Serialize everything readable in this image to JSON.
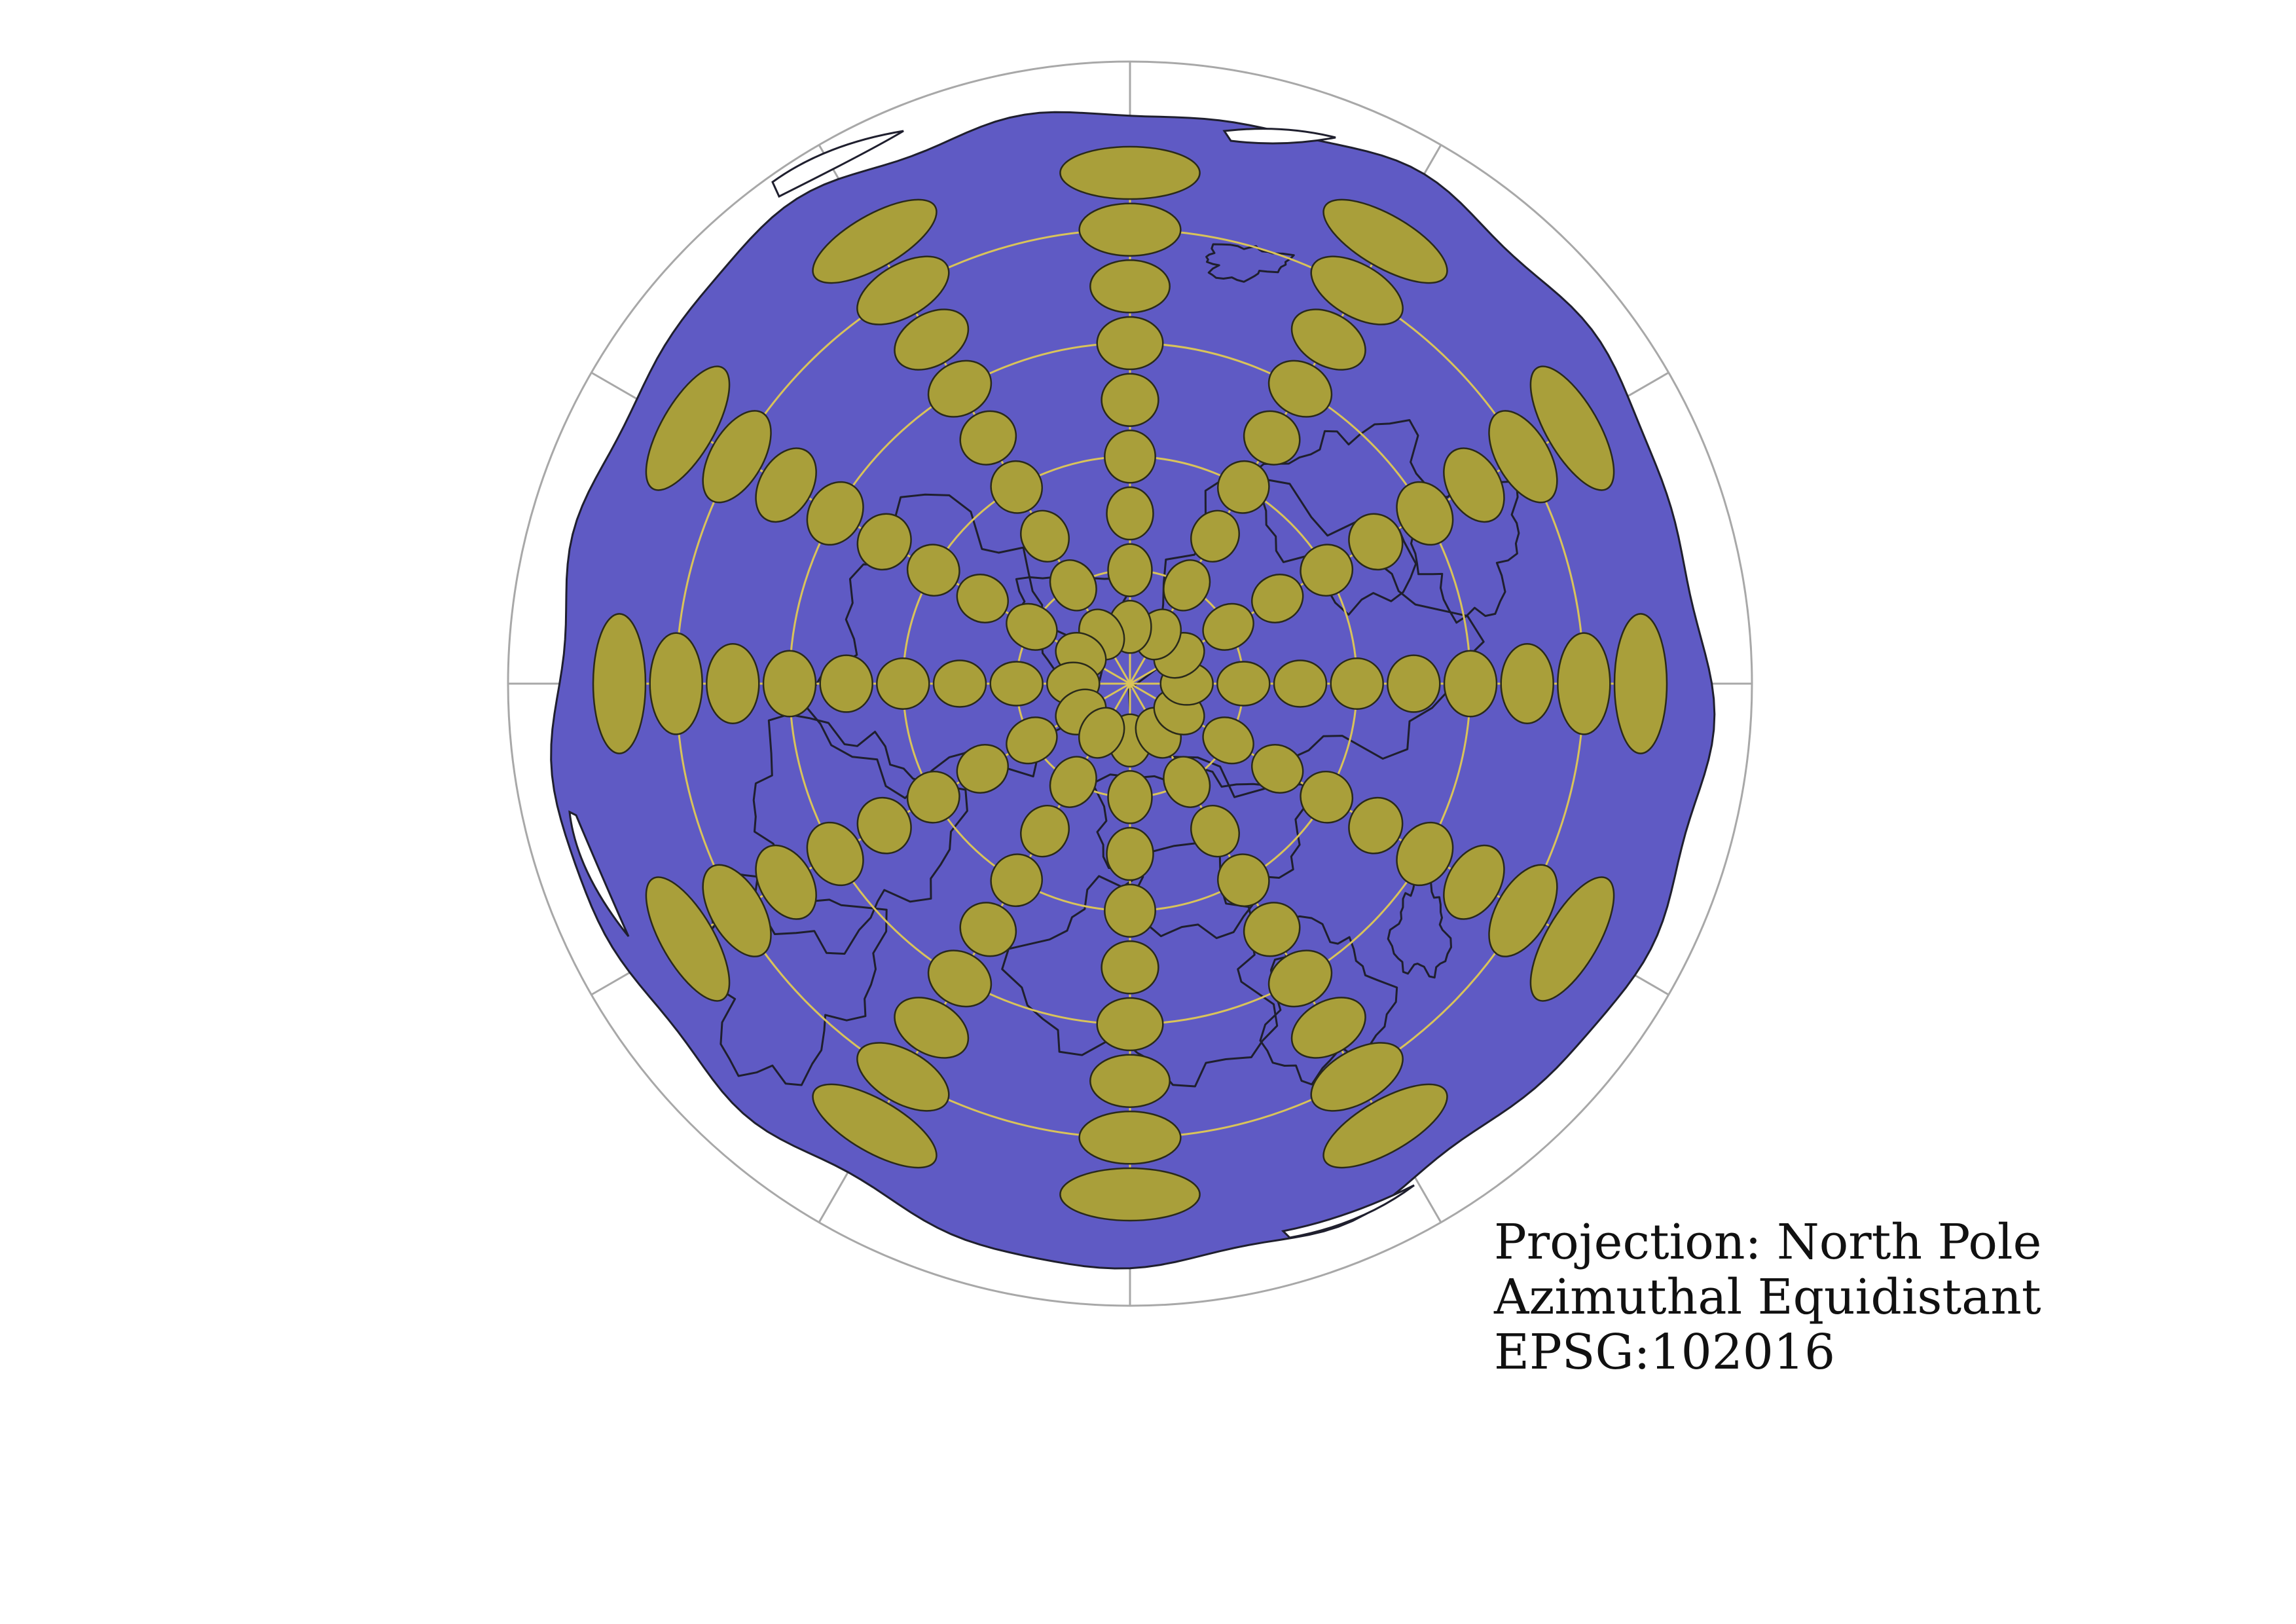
{
  "caption": {
    "line1": "Projection: North Pole",
    "line2": "Azimuthal Equidistant",
    "line3": "EPSG:102016"
  },
  "colors": {
    "ocean": "#5F5AC4",
    "land_outline": "#1f1f2e",
    "tissot": "#A99F3A",
    "tissot_outline": "#2a2a1a",
    "graticule_inner": "#d9c35a",
    "graticule_outer": "#a8a8a8",
    "background": "#ffffff"
  },
  "map": {
    "projection": "North Pole Azimuthal Equidistant",
    "graticule_longitude_step_deg": 30,
    "graticule_latitude_circles_deg": [
      60,
      30,
      0,
      -30
    ],
    "tissot_latitudes_deg": [
      75,
      60,
      45,
      30,
      15,
      0,
      -15,
      -30,
      -45
    ],
    "tissot_longitude_step_deg": 30
  }
}
